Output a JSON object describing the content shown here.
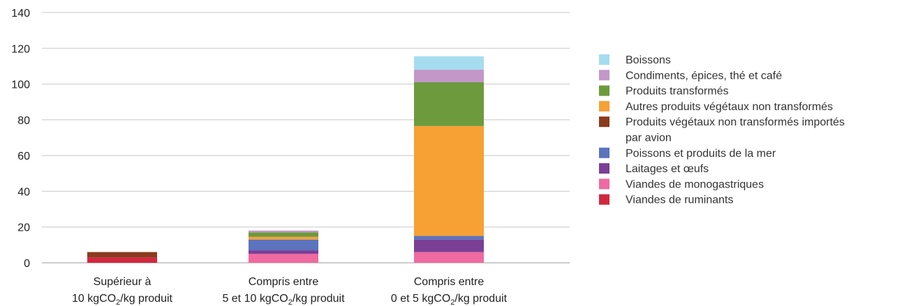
{
  "chart_data": {
    "type": "bar",
    "stacked": true,
    "title": "",
    "xlabel": "",
    "ylabel": "",
    "ylim": [
      0,
      140
    ],
    "yticks": [
      0,
      20,
      40,
      60,
      80,
      100,
      120,
      140
    ],
    "grid": "horizontal",
    "legend_position": "right",
    "categories": [
      {
        "line1": "Supérieur à",
        "line2_pre": "10 kgCO",
        "line2_sub": "2",
        "line2_post": "/kg produit"
      },
      {
        "line1": "Compris entre",
        "line2_pre": "5 et 10 kgCO",
        "line2_sub": "2",
        "line2_post": "/kg produit"
      },
      {
        "line1": "Compris entre",
        "line2_pre": "0 et 5 kgCO",
        "line2_sub": "2",
        "line2_post": "/kg produit"
      }
    ],
    "series": [
      {
        "name": "Viandes de ruminants",
        "color": "#d1283f",
        "values": [
          3,
          0,
          0
        ]
      },
      {
        "name": "Viandes de monogastriques",
        "color": "#ef6aa0",
        "values": [
          0,
          5,
          6
        ]
      },
      {
        "name": "Laitages et œufs",
        "color": "#7b3f96",
        "values": [
          0,
          2,
          7
        ]
      },
      {
        "name": "Poissons et produits de la mer",
        "color": "#5b74bd",
        "values": [
          0,
          6,
          2
        ]
      },
      {
        "name": "Produits végétaux non transformés importés par avion",
        "color": "#8b3b1e",
        "values": [
          3,
          0,
          0
        ]
      },
      {
        "name": "Autres produits végétaux non transformés",
        "color": "#f7a034",
        "values": [
          0,
          1.5,
          61.5
        ]
      },
      {
        "name": "Produits transformés",
        "color": "#6d9a3d",
        "values": [
          0,
          2.5,
          24.5
        ]
      },
      {
        "name": "Condiments, épices, thé et café",
        "color": "#c397c8",
        "values": [
          0,
          1,
          7
        ]
      },
      {
        "name": "Boissons",
        "color": "#a6dcef",
        "values": [
          0,
          0,
          7.5
        ]
      }
    ],
    "legend_order": [
      {
        "lines": [
          "Boissons"
        ],
        "color": "#a6dcef"
      },
      {
        "lines": [
          "Condiments, épices, thé et café"
        ],
        "color": "#c397c8"
      },
      {
        "lines": [
          "Produits transformés"
        ],
        "color": "#6d9a3d"
      },
      {
        "lines": [
          "Autres produits végétaux non transformés"
        ],
        "color": "#f7a034"
      },
      {
        "lines": [
          "Produits végétaux non transformés importés",
          "par avion"
        ],
        "color": "#8b3b1e"
      },
      {
        "lines": [
          "Poissons et produits de la mer"
        ],
        "color": "#5b74bd"
      },
      {
        "lines": [
          "Laitages et œufs"
        ],
        "color": "#7b3f96"
      },
      {
        "lines": [
          "Viandes de monogastriques"
        ],
        "color": "#ef6aa0"
      },
      {
        "lines": [
          "Viandes de ruminants"
        ],
        "color": "#d1283f"
      }
    ]
  }
}
